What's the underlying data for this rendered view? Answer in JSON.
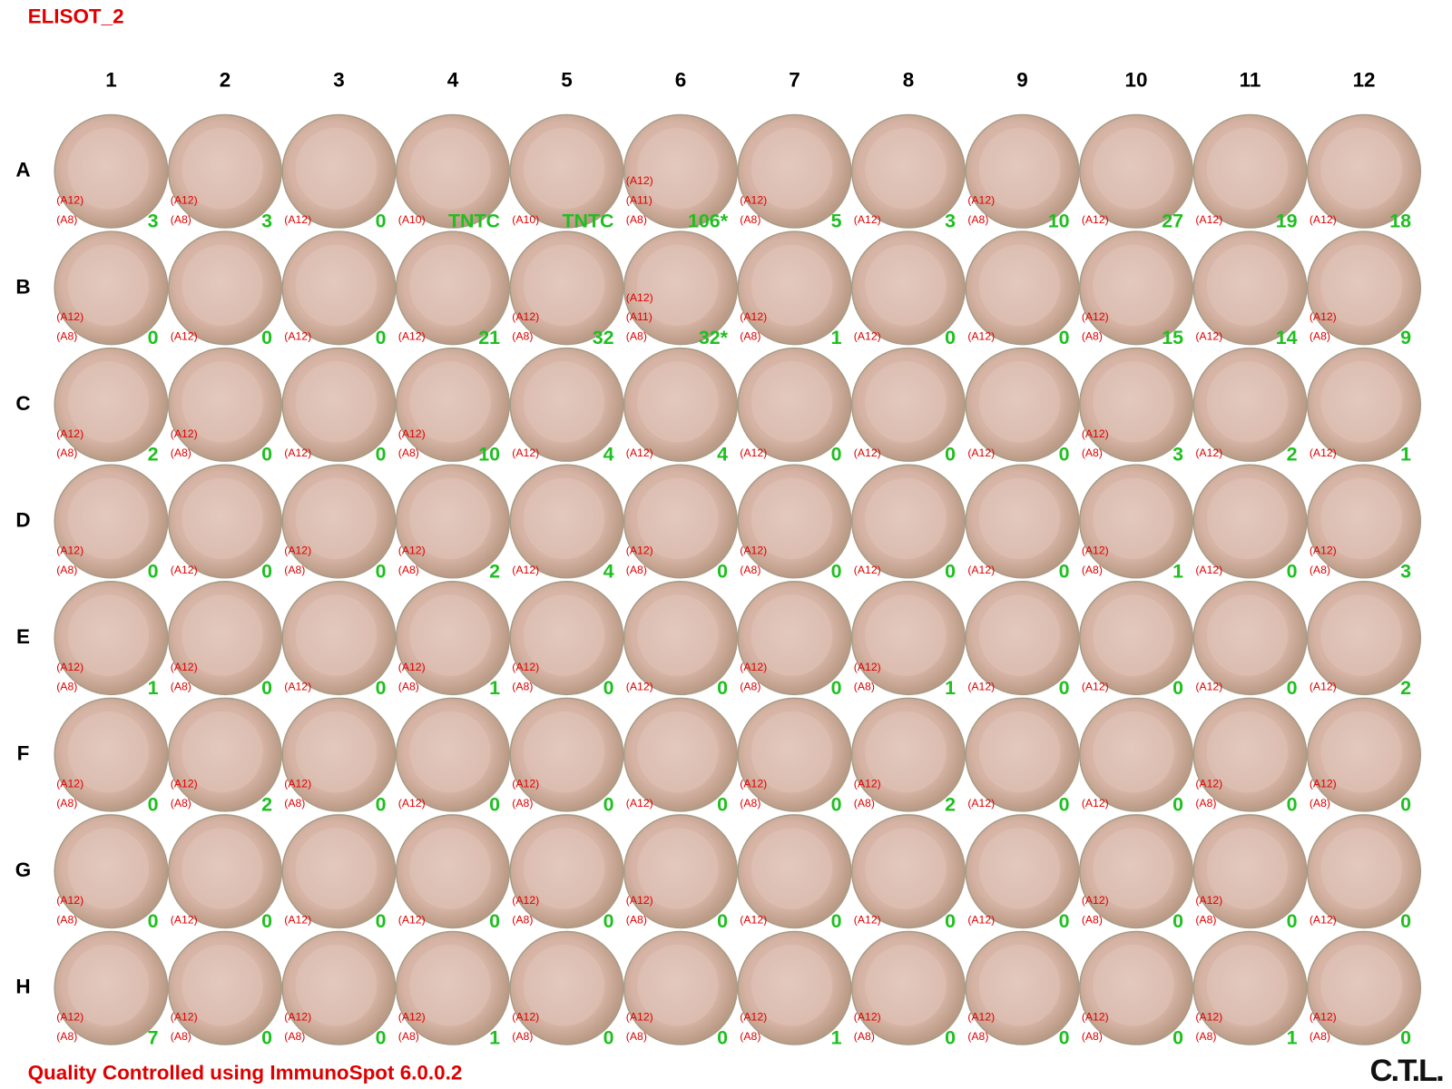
{
  "header": {
    "title": "ELISOT_2"
  },
  "plate": {
    "columns": [
      1,
      2,
      3,
      4,
      5,
      6,
      7,
      8,
      9,
      10,
      11,
      12
    ],
    "rows": [
      "A",
      "B",
      "C",
      "D",
      "E",
      "F",
      "G",
      "H"
    ],
    "wells": [
      [
        {
          "labels": [
            "(A12)",
            "(A8)"
          ],
          "count": 3
        },
        {
          "labels": [
            "(A12)",
            "(A8)"
          ],
          "count": 3
        },
        {
          "labels": [
            "(A12)"
          ],
          "count": 0
        },
        {
          "labels": [
            "(A10)"
          ],
          "count": "TNTC"
        },
        {
          "labels": [
            "(A10)"
          ],
          "count": "TNTC"
        },
        {
          "labels": [
            "(A12)",
            "(A11)",
            "(A8)"
          ],
          "count": "106*"
        },
        {
          "labels": [
            "(A12)",
            "(A8)"
          ],
          "count": 5
        },
        {
          "labels": [
            "(A12)"
          ],
          "count": 3
        },
        {
          "labels": [
            "(A12)",
            "(A8)"
          ],
          "count": 10
        },
        {
          "labels": [
            "(A12)"
          ],
          "count": 27
        },
        {
          "labels": [
            "(A12)"
          ],
          "count": 19
        },
        {
          "labels": [
            "(A12)"
          ],
          "count": 18
        }
      ],
      [
        {
          "labels": [
            "(A12)",
            "(A8)"
          ],
          "count": 0
        },
        {
          "labels": [
            "(A12)"
          ],
          "count": 0
        },
        {
          "labels": [
            "(A12)"
          ],
          "count": 0
        },
        {
          "labels": [
            "(A12)"
          ],
          "count": 21
        },
        {
          "labels": [
            "(A12)",
            "(A8)"
          ],
          "count": 32
        },
        {
          "labels": [
            "(A12)",
            "(A11)",
            "(A8)"
          ],
          "count": "32*"
        },
        {
          "labels": [
            "(A12)",
            "(A8)"
          ],
          "count": 1
        },
        {
          "labels": [
            "(A12)"
          ],
          "count": 0
        },
        {
          "labels": [
            "(A12)"
          ],
          "count": 0
        },
        {
          "labels": [
            "(A12)",
            "(A8)"
          ],
          "count": 15
        },
        {
          "labels": [
            "(A12)"
          ],
          "count": 14
        },
        {
          "labels": [
            "(A12)",
            "(A8)"
          ],
          "count": 9
        }
      ],
      [
        {
          "labels": [
            "(A12)",
            "(A8)"
          ],
          "count": 2
        },
        {
          "labels": [
            "(A12)",
            "(A8)"
          ],
          "count": 0
        },
        {
          "labels": [
            "(A12)"
          ],
          "count": 0
        },
        {
          "labels": [
            "(A12)",
            "(A8)"
          ],
          "count": 10
        },
        {
          "labels": [
            "(A12)"
          ],
          "count": 4
        },
        {
          "labels": [
            "(A12)"
          ],
          "count": 4
        },
        {
          "labels": [
            "(A12)"
          ],
          "count": 0
        },
        {
          "labels": [
            "(A12)"
          ],
          "count": 0
        },
        {
          "labels": [
            "(A12)"
          ],
          "count": 0
        },
        {
          "labels": [
            "(A12)",
            "(A8)"
          ],
          "count": 3
        },
        {
          "labels": [
            "(A12)"
          ],
          "count": 2
        },
        {
          "labels": [
            "(A12)"
          ],
          "count": 1
        }
      ],
      [
        {
          "labels": [
            "(A12)",
            "(A8)"
          ],
          "count": 0
        },
        {
          "labels": [
            "(A12)"
          ],
          "count": 0
        },
        {
          "labels": [
            "(A12)",
            "(A8)"
          ],
          "count": 0
        },
        {
          "labels": [
            "(A12)",
            "(A8)"
          ],
          "count": 2
        },
        {
          "labels": [
            "(A12)"
          ],
          "count": 4
        },
        {
          "labels": [
            "(A12)",
            "(A8)"
          ],
          "count": 0
        },
        {
          "labels": [
            "(A12)",
            "(A8)"
          ],
          "count": 0
        },
        {
          "labels": [
            "(A12)"
          ],
          "count": 0
        },
        {
          "labels": [
            "(A12)"
          ],
          "count": 0
        },
        {
          "labels": [
            "(A12)",
            "(A8)"
          ],
          "count": 1
        },
        {
          "labels": [
            "(A12)"
          ],
          "count": 0
        },
        {
          "labels": [
            "(A12)",
            "(A8)"
          ],
          "count": 3
        }
      ],
      [
        {
          "labels": [
            "(A12)",
            "(A8)"
          ],
          "count": 1
        },
        {
          "labels": [
            "(A12)",
            "(A8)"
          ],
          "count": 0
        },
        {
          "labels": [
            "(A12)"
          ],
          "count": 0
        },
        {
          "labels": [
            "(A12)",
            "(A8)"
          ],
          "count": 1
        },
        {
          "labels": [
            "(A12)",
            "(A8)"
          ],
          "count": 0
        },
        {
          "labels": [
            "(A12)"
          ],
          "count": 0
        },
        {
          "labels": [
            "(A12)",
            "(A8)"
          ],
          "count": 0
        },
        {
          "labels": [
            "(A12)",
            "(A8)"
          ],
          "count": 1
        },
        {
          "labels": [
            "(A12)"
          ],
          "count": 0
        },
        {
          "labels": [
            "(A12)"
          ],
          "count": 0
        },
        {
          "labels": [
            "(A12)"
          ],
          "count": 0
        },
        {
          "labels": [
            "(A12)"
          ],
          "count": 2
        }
      ],
      [
        {
          "labels": [
            "(A12)",
            "(A8)"
          ],
          "count": 0
        },
        {
          "labels": [
            "(A12)",
            "(A8)"
          ],
          "count": 2
        },
        {
          "labels": [
            "(A12)",
            "(A8)"
          ],
          "count": 0
        },
        {
          "labels": [
            "(A12)"
          ],
          "count": 0
        },
        {
          "labels": [
            "(A12)",
            "(A8)"
          ],
          "count": 0
        },
        {
          "labels": [
            "(A12)"
          ],
          "count": 0
        },
        {
          "labels": [
            "(A12)",
            "(A8)"
          ],
          "count": 0
        },
        {
          "labels": [
            "(A12)",
            "(A8)"
          ],
          "count": 2
        },
        {
          "labels": [
            "(A12)"
          ],
          "count": 0
        },
        {
          "labels": [
            "(A12)"
          ],
          "count": 0
        },
        {
          "labels": [
            "(A12)",
            "(A8)"
          ],
          "count": 0
        },
        {
          "labels": [
            "(A12)",
            "(A8)"
          ],
          "count": 0
        }
      ],
      [
        {
          "labels": [
            "(A12)",
            "(A8)"
          ],
          "count": 0
        },
        {
          "labels": [
            "(A12)"
          ],
          "count": 0
        },
        {
          "labels": [
            "(A12)"
          ],
          "count": 0
        },
        {
          "labels": [
            "(A12)"
          ],
          "count": 0
        },
        {
          "labels": [
            "(A12)",
            "(A8)"
          ],
          "count": 0
        },
        {
          "labels": [
            "(A12)",
            "(A8)"
          ],
          "count": 0
        },
        {
          "labels": [
            "(A12)"
          ],
          "count": 0
        },
        {
          "labels": [
            "(A12)"
          ],
          "count": 0
        },
        {
          "labels": [
            "(A12)"
          ],
          "count": 0
        },
        {
          "labels": [
            "(A12)",
            "(A8)"
          ],
          "count": 0
        },
        {
          "labels": [
            "(A12)",
            "(A8)"
          ],
          "count": 0
        },
        {
          "labels": [
            "(A12)"
          ],
          "count": 0
        }
      ],
      [
        {
          "labels": [
            "(A12)",
            "(A8)"
          ],
          "count": 7
        },
        {
          "labels": [
            "(A12)",
            "(A8)"
          ],
          "count": 0
        },
        {
          "labels": [
            "(A12)",
            "(A8)"
          ],
          "count": 0
        },
        {
          "labels": [
            "(A12)",
            "(A8)"
          ],
          "count": 1
        },
        {
          "labels": [
            "(A12)",
            "(A8)"
          ],
          "count": 0
        },
        {
          "labels": [
            "(A12)",
            "(A8)"
          ],
          "count": 0
        },
        {
          "labels": [
            "(A12)",
            "(A8)"
          ],
          "count": 1
        },
        {
          "labels": [
            "(A12)",
            "(A8)"
          ],
          "count": 0
        },
        {
          "labels": [
            "(A12)",
            "(A8)"
          ],
          "count": 0
        },
        {
          "labels": [
            "(A12)",
            "(A8)"
          ],
          "count": 0
        },
        {
          "labels": [
            "(A12)",
            "(A8)"
          ],
          "count": 1
        },
        {
          "labels": [
            "(A12)",
            "(A8)"
          ],
          "count": 0
        }
      ]
    ]
  },
  "footer": {
    "note": "Quality Controlled using ImmunoSpot 6.0.0.2",
    "logo": "C.T.L."
  }
}
